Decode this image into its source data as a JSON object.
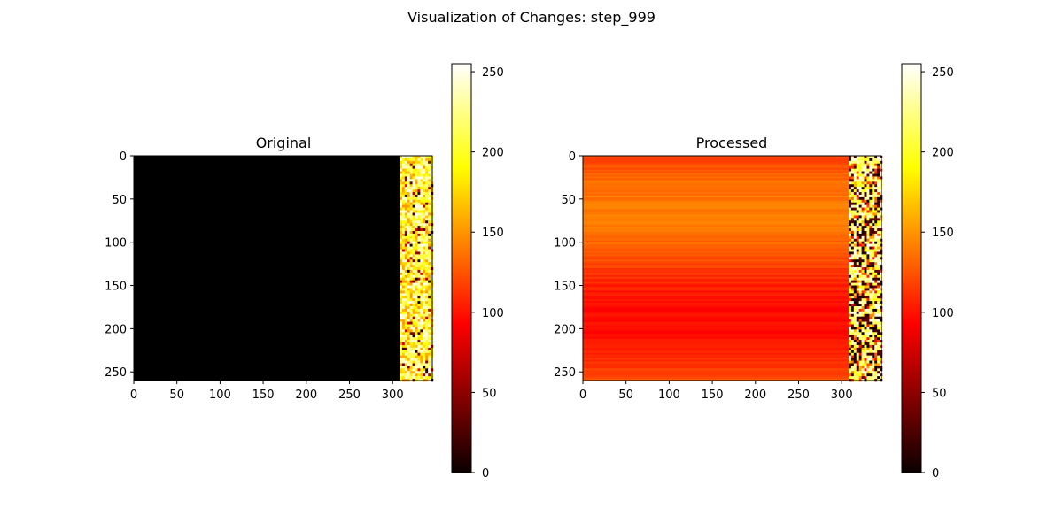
{
  "figure": {
    "title": "Visualization of Changes: step_999"
  },
  "chart_data": [
    {
      "type": "heatmap",
      "title": "Original",
      "colormap": "hot",
      "shape": [
        260,
        346
      ],
      "xlim": [
        0,
        346
      ],
      "ylim": [
        260,
        0
      ],
      "xticks": [
        0,
        50,
        100,
        150,
        200,
        250,
        300
      ],
      "yticks": [
        0,
        50,
        100,
        150,
        200,
        250
      ],
      "regions": [
        {
          "columns": [
            0,
            308
          ],
          "description": "all values 0 (black)"
        },
        {
          "columns": [
            308,
            346
          ],
          "description": "random values 0-255, mostly white/yellow/orange"
        }
      ],
      "colorbar": {
        "range": [
          0,
          255
        ],
        "ticks": [
          0,
          50,
          100,
          150,
          200,
          250
        ]
      }
    },
    {
      "type": "heatmap",
      "title": "Processed",
      "colormap": "hot",
      "shape": [
        260,
        346
      ],
      "xlim": [
        0,
        346
      ],
      "ylim": [
        260,
        0
      ],
      "xticks": [
        0,
        50,
        100,
        150,
        200,
        250,
        300
      ],
      "yticks": [
        0,
        50,
        100,
        150,
        200,
        250
      ],
      "regions": [
        {
          "columns": [
            0,
            308
          ],
          "description": "row-wise constant values approx 110-150 (red-orange)"
        },
        {
          "columns": [
            308,
            346
          ],
          "description": "high-contrast noisy values 0-255"
        }
      ],
      "colorbar": {
        "range": [
          0,
          255
        ],
        "ticks": [
          0,
          50,
          100,
          150,
          200,
          250
        ]
      }
    }
  ],
  "colors": {
    "hot_colormap": [
      "#0b0000",
      "#ff0000",
      "#ffff00",
      "#ffffff"
    ]
  }
}
